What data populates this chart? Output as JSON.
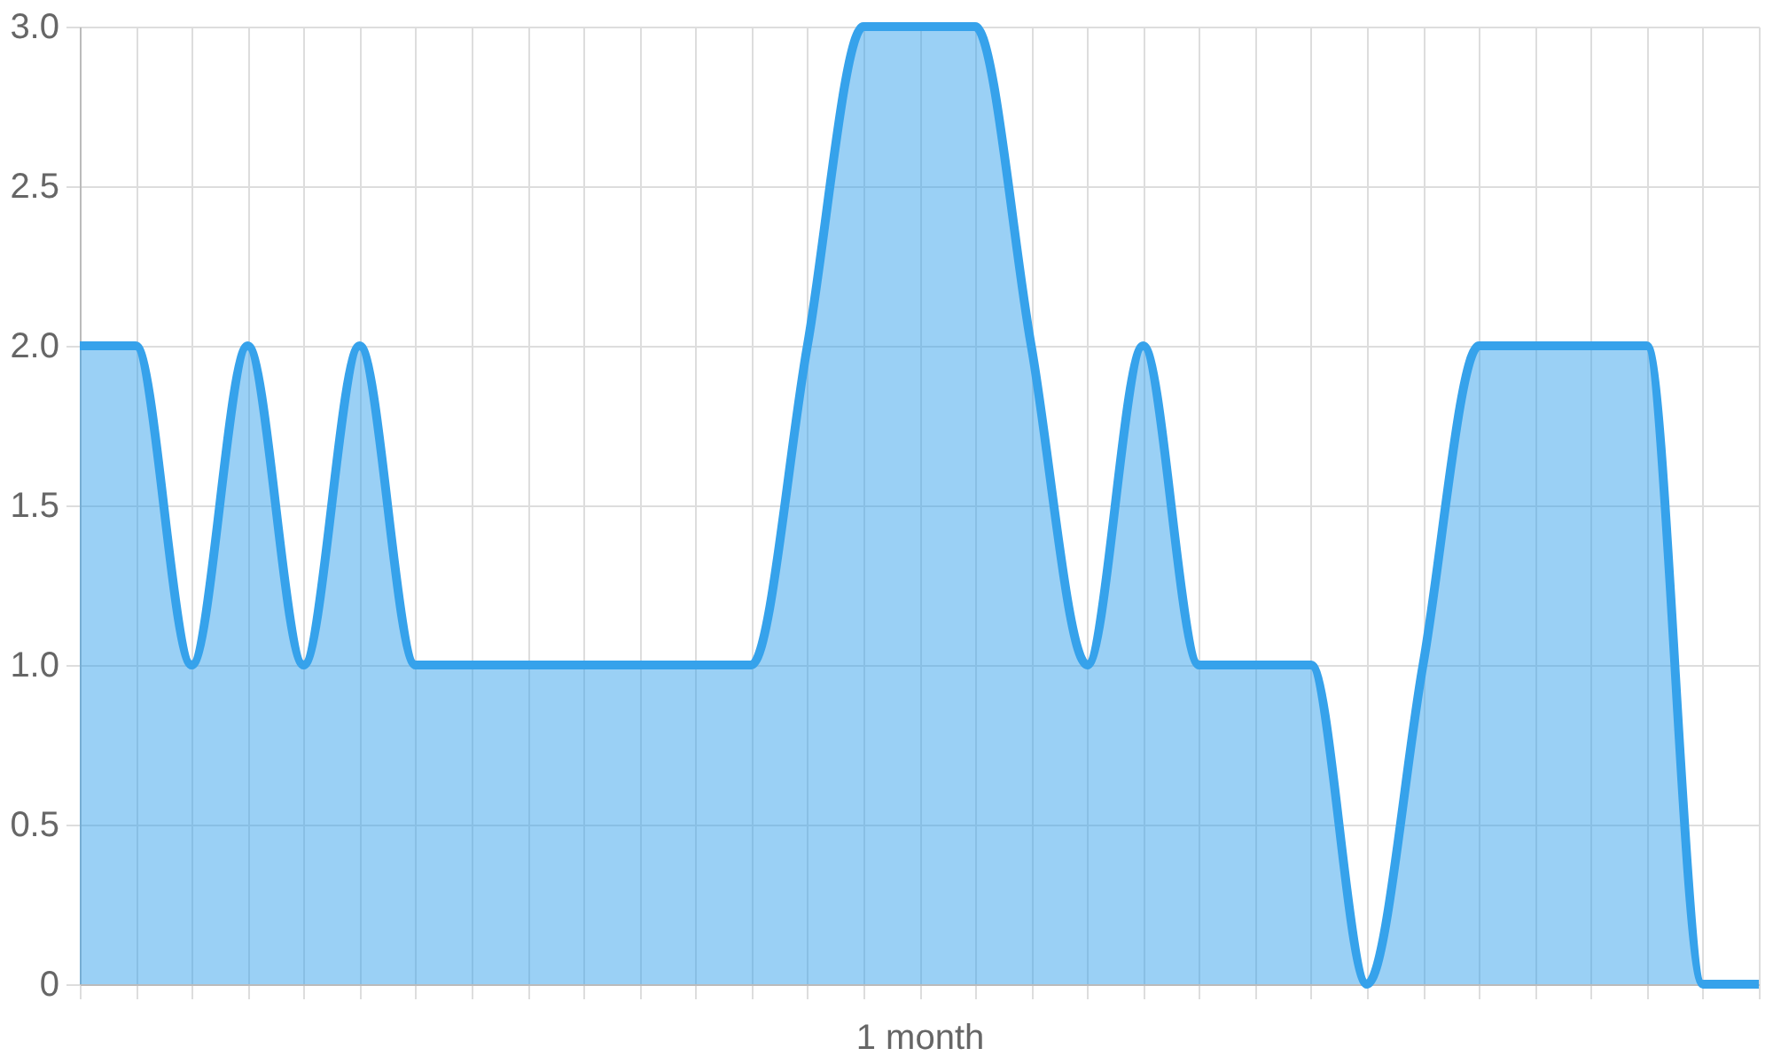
{
  "chart_data": {
    "type": "area",
    "categories": [
      null,
      null,
      null,
      null,
      null,
      null,
      null,
      null,
      null,
      null,
      null,
      null,
      null,
      null,
      null,
      "1 month",
      null,
      null,
      null,
      null,
      null,
      null,
      null,
      null,
      null,
      null,
      null,
      null,
      null,
      null,
      null
    ],
    "series": [
      {
        "color": "#36a2eb",
        "values": [
          2,
          2,
          1,
          2,
          1,
          2,
          1,
          1,
          1,
          1,
          1,
          1,
          1,
          2,
          3,
          3,
          3,
          2,
          1,
          2,
          1,
          1,
          1,
          0,
          1,
          2,
          2,
          2,
          2,
          0,
          0
        ]
      }
    ],
    "ylim": [
      0,
      3
    ],
    "yticks": [
      0,
      0.5,
      {
        "value": 1,
        "label": "1.0"
      },
      1.5,
      {
        "value": 2,
        "label": "2.0"
      },
      2.5,
      {
        "value": 3,
        "label": "3.0"
      }
    ],
    "grid": true
  }
}
